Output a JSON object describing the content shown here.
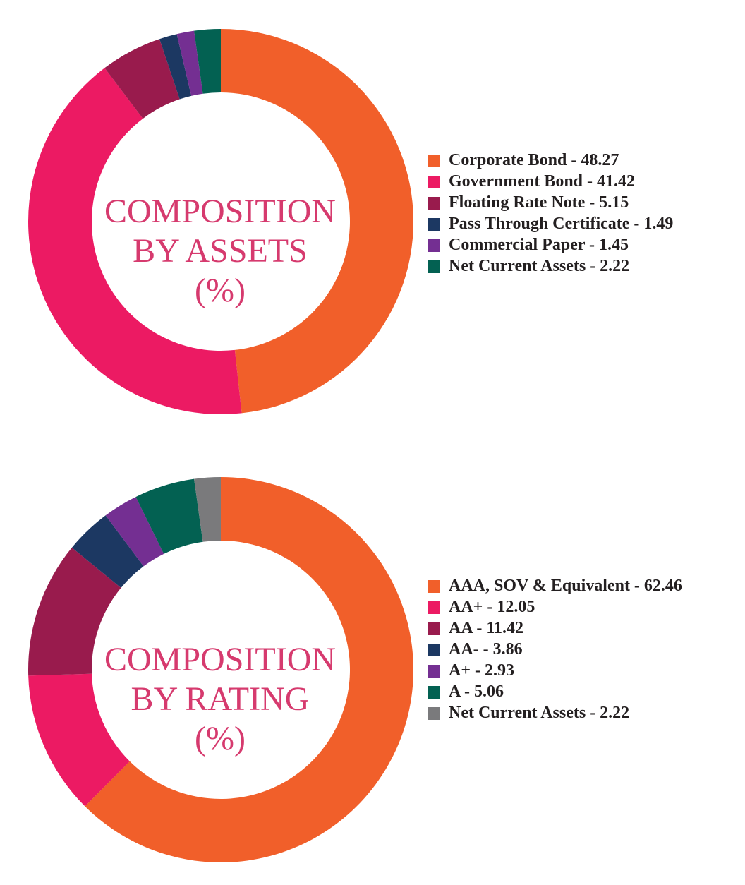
{
  "chart_data": [
    {
      "type": "pie",
      "title": "COMPOSITION BY ASSETS (%)",
      "title_lines": [
        "COMPOSITION",
        "BY ASSETS",
        "(%)"
      ],
      "legend_position": "right",
      "categories": [
        "Corporate Bond",
        "Government Bond",
        "Floating Rate Note",
        "Pass Through Certificate",
        "Commercial Paper",
        "Net Current Assets"
      ],
      "values": [
        48.27,
        41.42,
        5.15,
        1.49,
        1.45,
        2.22
      ],
      "legend_labels": [
        "Corporate Bond - 48.27",
        "Government Bond - 41.42",
        "Floating Rate Note - 5.15",
        "Pass Through Certificate - 1.49",
        "Commercial Paper - 1.45",
        "Net Current Assets - 2.22"
      ],
      "colors": [
        "#f15f2a",
        "#ec1a63",
        "#991b4d",
        "#1c3862",
        "#742f92",
        "#036152"
      ]
    },
    {
      "type": "pie",
      "title": "COMPOSITION BY RATING (%)",
      "title_lines": [
        "COMPOSITION",
        "BY RATING",
        "(%)"
      ],
      "legend_position": "right",
      "categories": [
        "AAA, SOV & Equivalent",
        "AA+",
        "AA",
        "AA-",
        "A+",
        "A",
        "Net Current Assets"
      ],
      "values": [
        62.46,
        12.05,
        11.42,
        3.86,
        2.93,
        5.06,
        2.22
      ],
      "legend_labels": [
        "AAA, SOV & Equivalent - 62.46",
        "AA+ - 12.05",
        "AA - 11.42",
        "AA- - 3.86",
        "A+ - 2.93",
        "A - 5.06",
        "Net Current Assets - 2.22"
      ],
      "colors": [
        "#f15f2a",
        "#ec1a63",
        "#991b4d",
        "#1c3862",
        "#742f92",
        "#036152",
        "#7a7a7c"
      ]
    }
  ]
}
